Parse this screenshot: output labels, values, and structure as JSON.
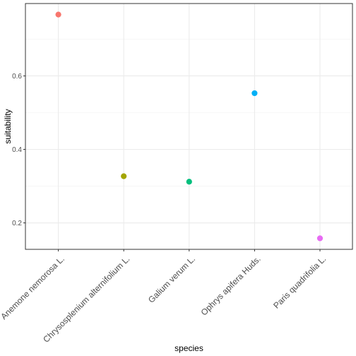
{
  "chart_data": {
    "type": "scatter",
    "xlabel": "species",
    "ylabel": "suitability",
    "categories": [
      "Anemone nemorosa L.",
      "Chrysosplenium alternifolium L.",
      "Galium verum L.",
      "Ophrys apifera Huds.",
      "Paris quadrifolia L."
    ],
    "values": [
      0.767,
      0.327,
      0.312,
      0.553,
      0.158
    ],
    "colors": [
      "#F8766D",
      "#A3A500",
      "#00BF7D",
      "#00B0F6",
      "#E76BF3"
    ],
    "ylim": [
      0.128,
      0.797
    ],
    "yticks": [
      0.2,
      0.4,
      0.6
    ],
    "ytick_labels": [
      "0.2",
      "0.4",
      "0.6"
    ],
    "grid": true,
    "legend": "none",
    "theme": "bw"
  }
}
